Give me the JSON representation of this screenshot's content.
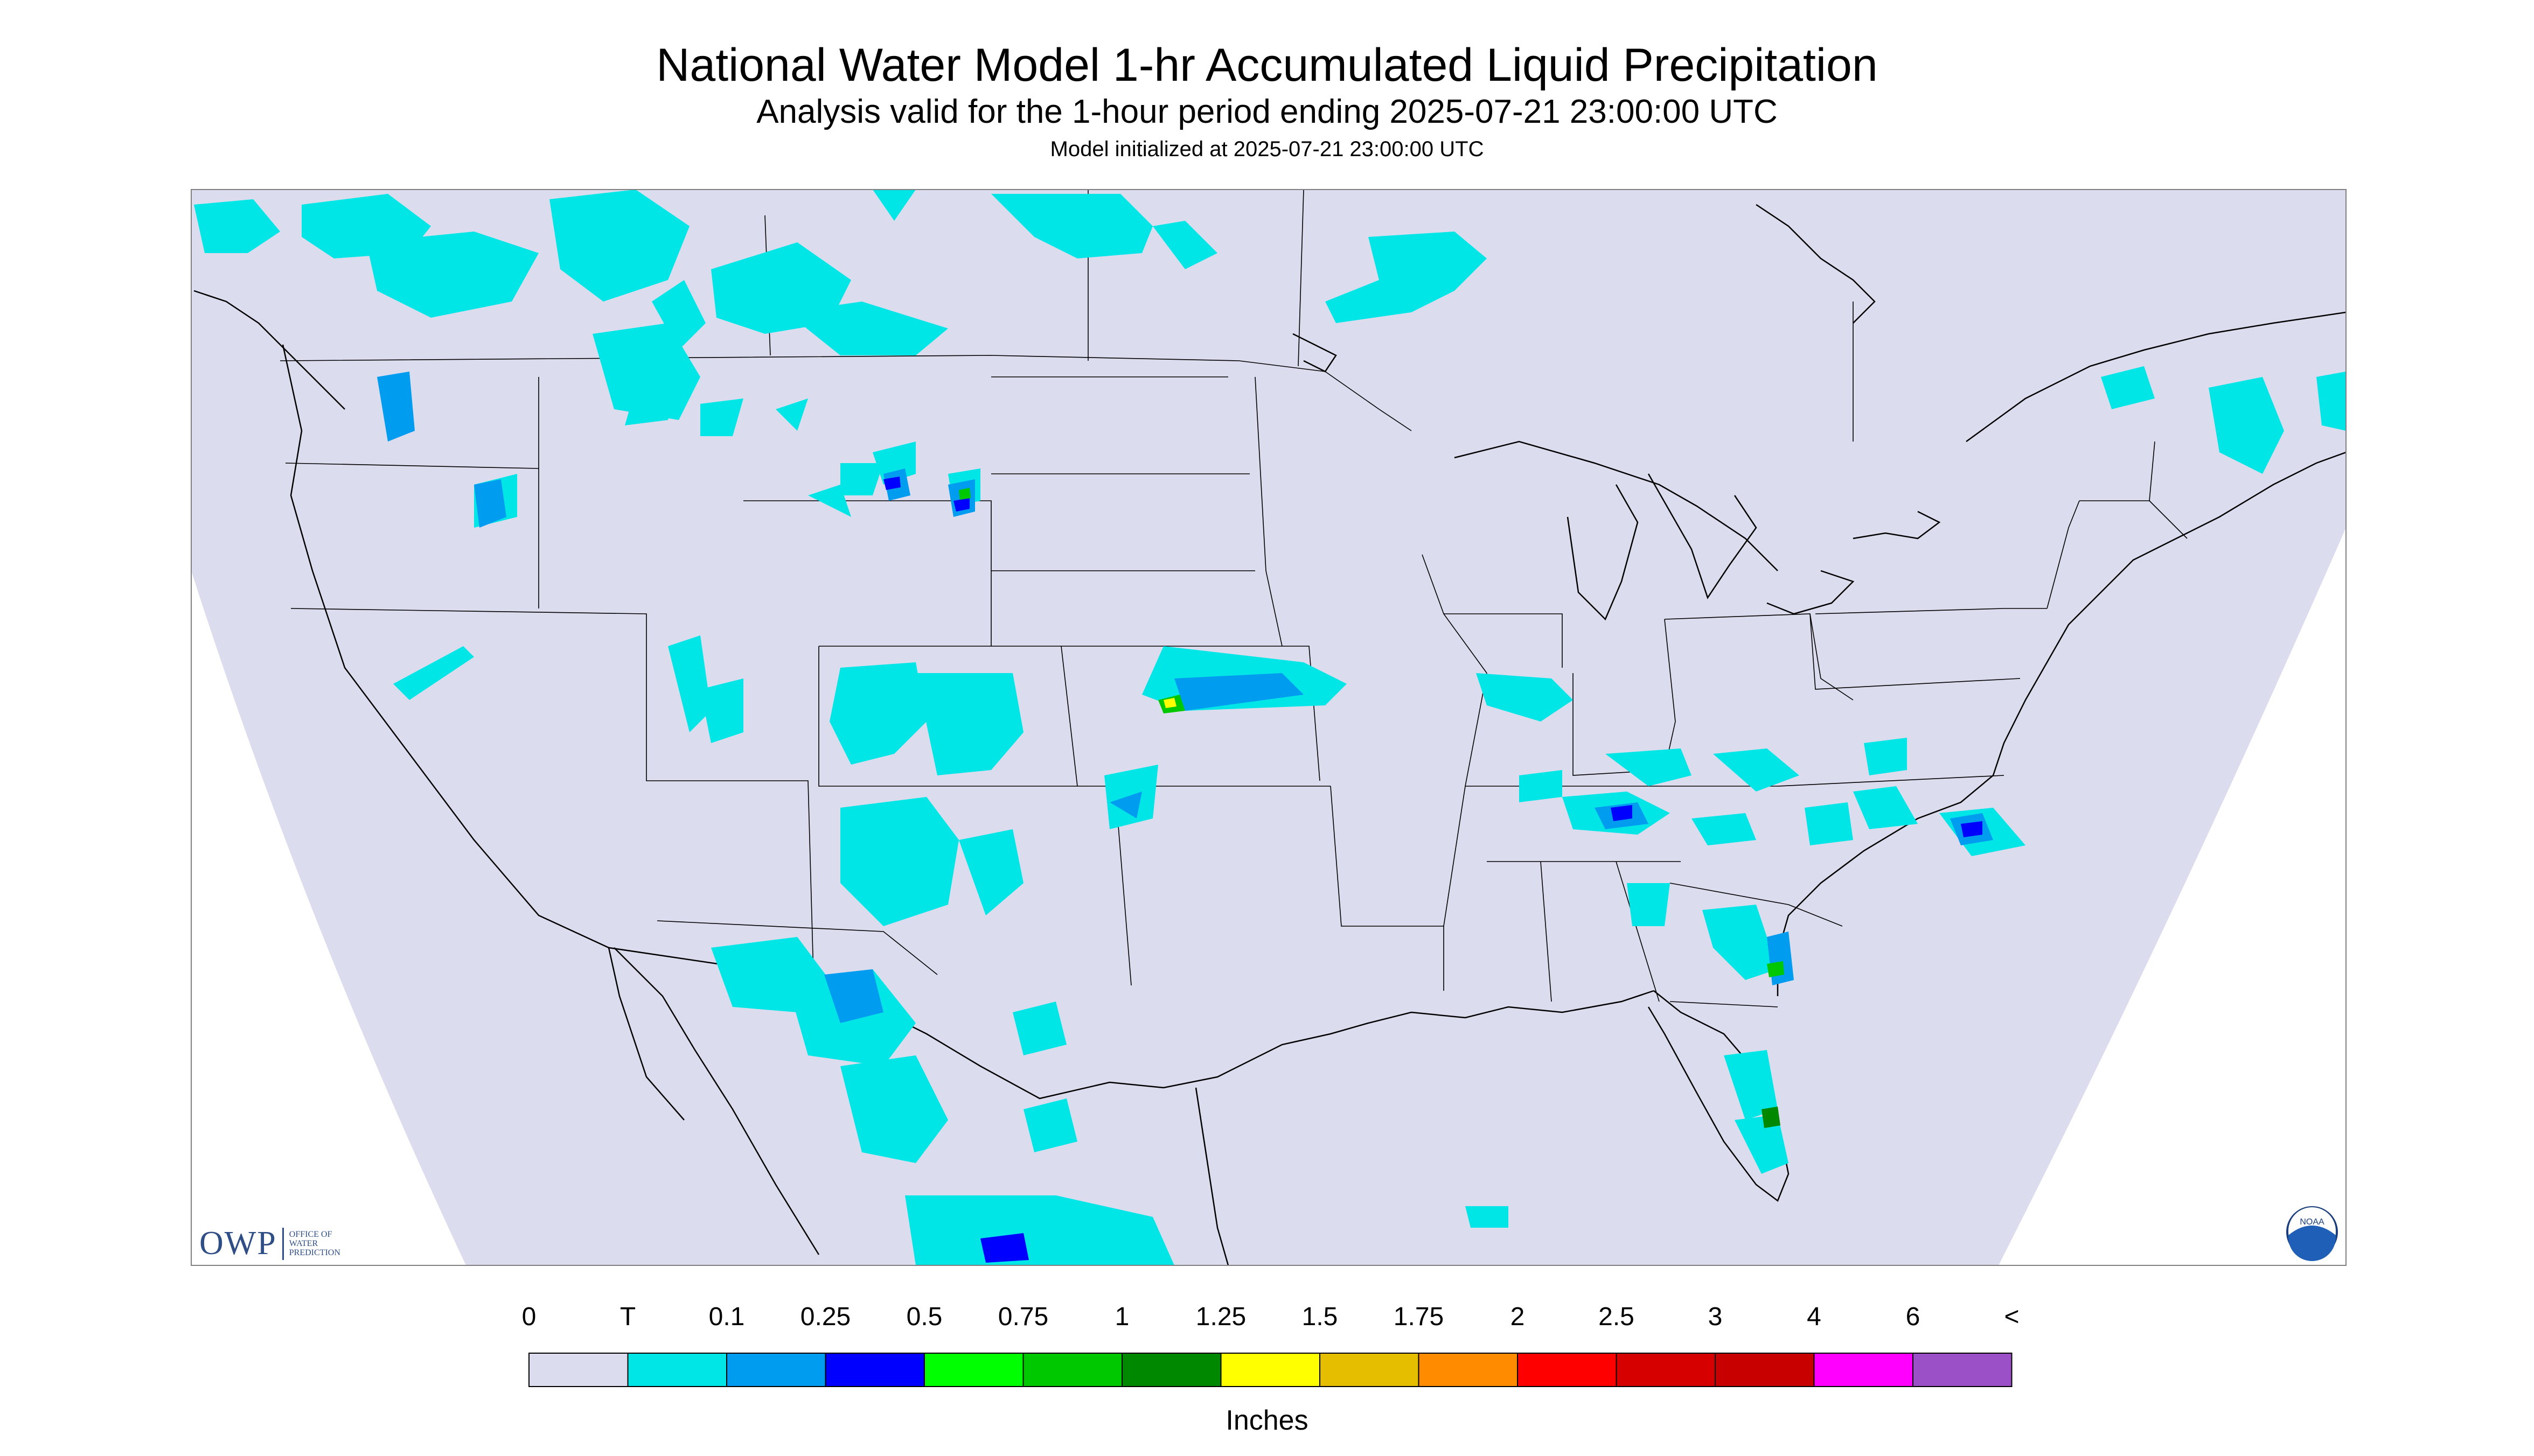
{
  "header": {
    "title": "National Water Model 1-hr Accumulated Liquid Precipitation",
    "subtitle": "Analysis valid for the 1-hour period ending 2025-07-21 23:00:00 UTC",
    "init_line": "Model initialized at 2025-07-21 23:00:00 UTC"
  },
  "map": {
    "background_color": "#dcdcef",
    "outside_color": "#ffffff",
    "border_color": "#000000",
    "precip_features": [
      {
        "region": "Pacific Northwest / British Columbia",
        "level": "0.1",
        "color": "#00e6e6"
      },
      {
        "region": "Idaho / Montana",
        "level": "0.25",
        "color": "#009cf0"
      },
      {
        "region": "Wyoming / Black Hills",
        "level": "0.75",
        "color": "#00c800"
      },
      {
        "region": "Kansas / Missouri",
        "level": "1.5",
        "color": "#ffff00"
      },
      {
        "region": "New Mexico / Arizona",
        "level": "0.25",
        "color": "#009cf0"
      },
      {
        "region": "Texas Trans-Pecos / Mexico",
        "level": "0.5",
        "color": "#0000ff"
      },
      {
        "region": "Tennessee / Kentucky",
        "level": "0.5",
        "color": "#0000ff"
      },
      {
        "region": "Georgia / South Carolina coast",
        "level": "0.75",
        "color": "#00c800"
      },
      {
        "region": "Central Florida",
        "level": "1",
        "color": "#008800"
      },
      {
        "region": "North Carolina / Virginia coast",
        "level": "0.5",
        "color": "#0000ff"
      },
      {
        "region": "Quebec / Maine",
        "level": "0.1",
        "color": "#00e6e6"
      }
    ]
  },
  "logos": {
    "owp_text": "OWP",
    "owp_subtext": "OFFICE OF WATER PREDICTION",
    "noaa_text": "NOAA"
  },
  "legend": {
    "labels": [
      "0",
      "T",
      "0.1",
      "0.25",
      "0.5",
      "0.75",
      "1",
      "1.25",
      "1.5",
      "1.75",
      "2",
      "2.5",
      "3",
      "4",
      "6",
      "<"
    ],
    "colors": [
      "#dcdcef",
      "#00e6e6",
      "#009cf0",
      "#0000ff",
      "#00ff00",
      "#00c800",
      "#008800",
      "#ffff00",
      "#e6be00",
      "#ff8c00",
      "#ff0000",
      "#d70000",
      "#c80000",
      "#ff00ff",
      "#9c50c8"
    ],
    "units": "Inches"
  }
}
